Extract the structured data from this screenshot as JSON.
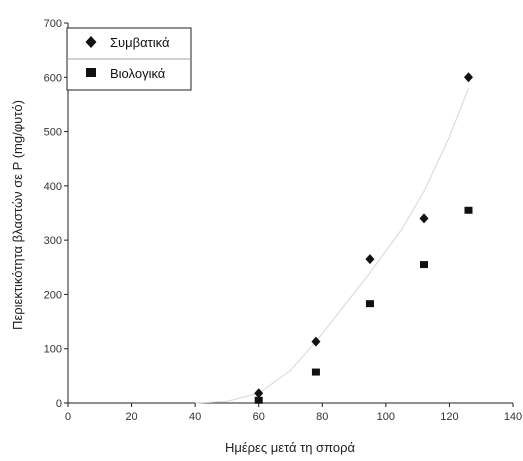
{
  "chart_data": {
    "type": "scatter",
    "xlabel": "Ημέρες μετά τη σπορά",
    "ylabel": "Περιεκτικότητα βλαστών σε P (mg/φυτό)",
    "xlim": [
      0,
      140
    ],
    "ylim": [
      0,
      700
    ],
    "xticks": [
      0,
      20,
      40,
      60,
      80,
      100,
      120,
      140
    ],
    "yticks": [
      0,
      100,
      200,
      300,
      400,
      500,
      600,
      700
    ],
    "grid": false,
    "legend": "top-left",
    "series": [
      {
        "name": "Συμβατικά",
        "marker": "diamond",
        "color": "#111111",
        "x": [
          60,
          78,
          95,
          112,
          126
        ],
        "y": [
          18,
          113,
          265,
          340,
          600
        ]
      },
      {
        "name": "Βιολογικά",
        "marker": "square",
        "color": "#111111",
        "x": [
          60,
          78,
          95,
          112,
          126
        ],
        "y": [
          5,
          57,
          183,
          255,
          355
        ]
      }
    ],
    "trendline": {
      "color": "#dddddd",
      "x": [
        40,
        50,
        60,
        70,
        78,
        85,
        95,
        105,
        112,
        120,
        126
      ],
      "y": [
        0,
        3,
        18,
        60,
        113,
        165,
        240,
        320,
        390,
        490,
        580
      ]
    }
  }
}
